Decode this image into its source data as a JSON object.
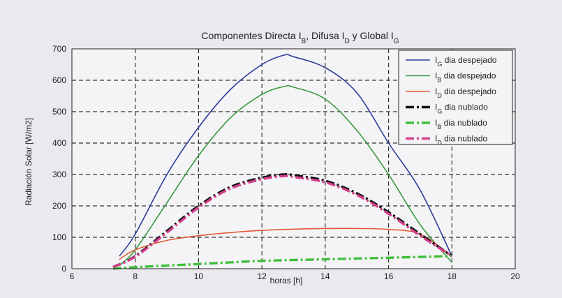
{
  "chart_data": {
    "type": "line",
    "title": {
      "prefix": "Componentes Directa I",
      "sub_b": "B",
      "mid1": ", Difusa I",
      "sub_d": "D",
      "mid2": " y Global I",
      "sub_g": "G"
    },
    "xlabel": "horas [h]",
    "ylabel": "Radiación Solar [W/m2]",
    "xlim": [
      6,
      20
    ],
    "ylim": [
      0,
      700
    ],
    "xticks": [
      6,
      8,
      10,
      12,
      14,
      16,
      18,
      20
    ],
    "yticks": [
      0,
      100,
      200,
      300,
      400,
      500,
      600,
      700
    ],
    "grid": true,
    "legend_position": "top-right",
    "series": [
      {
        "name": "IG dia despejado",
        "sym": "I",
        "sub": "G",
        "label": "dia despejado",
        "color": "#2e3c9b",
        "style": "solid",
        "x": [
          7.5,
          8,
          9,
          10,
          11,
          12,
          12.7,
          13,
          14,
          15,
          16,
          17,
          18
        ],
        "y": [
          40,
          110,
          300,
          450,
          570,
          650,
          680,
          675,
          640,
          560,
          400,
          250,
          40
        ]
      },
      {
        "name": "IB dia despejado",
        "sym": "I",
        "sub": "B",
        "label": "dia despejado",
        "color": "#3a9a3e",
        "style": "solid",
        "x": [
          7.5,
          8,
          9,
          10,
          11,
          12,
          12.7,
          13,
          14,
          15,
          16,
          17,
          18
        ],
        "y": [
          10,
          60,
          210,
          360,
          480,
          555,
          580,
          578,
          540,
          440,
          300,
          140,
          20
        ]
      },
      {
        "name": "ID dia despejado",
        "sym": "I",
        "sub": "D",
        "label": "dia despejado",
        "color": "#e05a36",
        "style": "solid",
        "x": [
          7.5,
          8,
          9,
          10,
          11,
          12,
          13,
          14,
          15,
          16,
          17,
          18
        ],
        "y": [
          30,
          60,
          90,
          105,
          115,
          122,
          126,
          128,
          128,
          125,
          110,
          40
        ]
      },
      {
        "name": "IG dia nublado",
        "sym": "I",
        "sub": "G",
        "label": "dia nublado",
        "color": "#111111",
        "style": "dashdot",
        "x": [
          7.3,
          8,
          9,
          10,
          11,
          12,
          12.7,
          13,
          14,
          15,
          16,
          17,
          18
        ],
        "y": [
          5,
          40,
          120,
          200,
          260,
          290,
          300,
          298,
          280,
          240,
          180,
          110,
          40
        ]
      },
      {
        "name": "IB dia nublado",
        "sym": "I",
        "sub": "B",
        "label": "dia nublado",
        "color": "#3fbf3a",
        "style": "dashdot",
        "x": [
          7.3,
          8,
          10,
          12,
          14,
          16,
          18
        ],
        "y": [
          0,
          5,
          15,
          25,
          30,
          35,
          40
        ]
      },
      {
        "name": "ID dia nublado",
        "sym": "I",
        "sub": "D",
        "label": "dia nublado",
        "color": "#d53f8c",
        "style": "dashdot",
        "x": [
          7.3,
          8,
          9,
          10,
          11,
          12,
          12.7,
          13,
          14,
          15,
          16,
          17,
          18
        ],
        "y": [
          5,
          38,
          115,
          195,
          255,
          285,
          295,
          292,
          275,
          235,
          175,
          105,
          40
        ]
      }
    ]
  }
}
